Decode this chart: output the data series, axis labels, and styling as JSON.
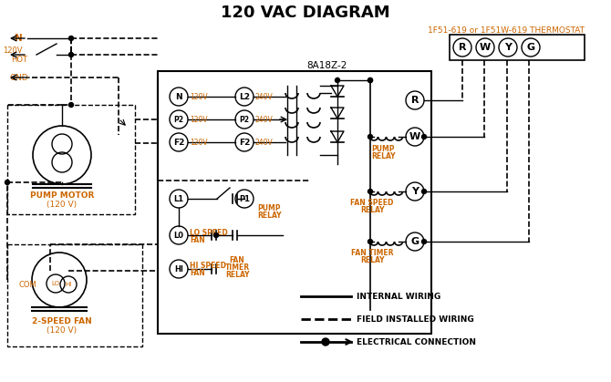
{
  "title": "120 VAC DIAGRAM",
  "title_fontsize": 13,
  "title_fontweight": "bold",
  "background_color": "#ffffff",
  "line_color": "#000000",
  "orange_color": "#cc6600",
  "thermostat_label": "1F51-619 or 1F51W-619 THERMOSTAT",
  "controller_label": "8A18Z-2",
  "legend_items": [
    {
      "label": "INTERNAL WIRING"
    },
    {
      "label": "FIELD INSTALLED WIRING"
    },
    {
      "label": "ELECTRICAL CONNECTION"
    }
  ]
}
